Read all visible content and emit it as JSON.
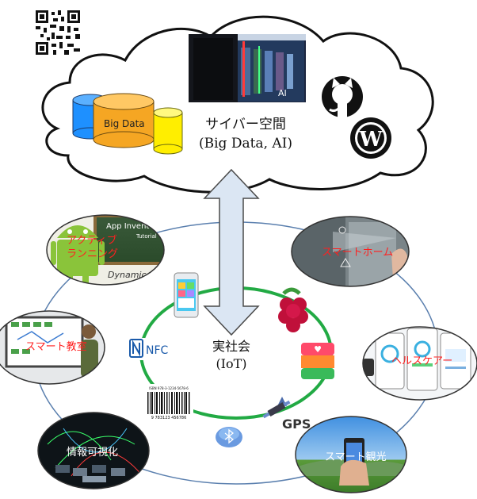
{
  "cloud": {
    "title": "サイバー空間",
    "subtitle": "(Big Data, AI)",
    "big_data_label": "Big Data",
    "ai_label": "AI"
  },
  "iot": {
    "title": "実社会",
    "subtitle": "(IoT)"
  },
  "nodes": {
    "active_running": [
      "アクティブ",
      "ランニング"
    ],
    "app_inventor": [
      "App Inventor",
      "Tutorial"
    ],
    "dynamic_ad": "Dynamic Ad",
    "smart_home": "スマートホーム",
    "smart_classroom": "スマート教室",
    "healthcare": "ヘルスケアー",
    "visualization": "情報可視化",
    "smart_tourism": "スマート観光"
  },
  "inner": {
    "nfc": "NFC",
    "gps": "GPS",
    "barcode_text": "ISBN 978-3-1234-5678-6",
    "barcode_digits": "9 783123 456786"
  },
  "colors": {
    "cloud_fill": "#ffffff",
    "arrow_fill": "#dbe6f3",
    "arrow_stroke": "#4a4a4a",
    "outer_ring": "#5a7fae",
    "inner_ring": "#22aa44",
    "node_label": "#ff2020",
    "cylinder_blue": "#1e90ff",
    "cylinder_orange": "#f5a623",
    "cylinder_yellow": "#ffee00"
  }
}
